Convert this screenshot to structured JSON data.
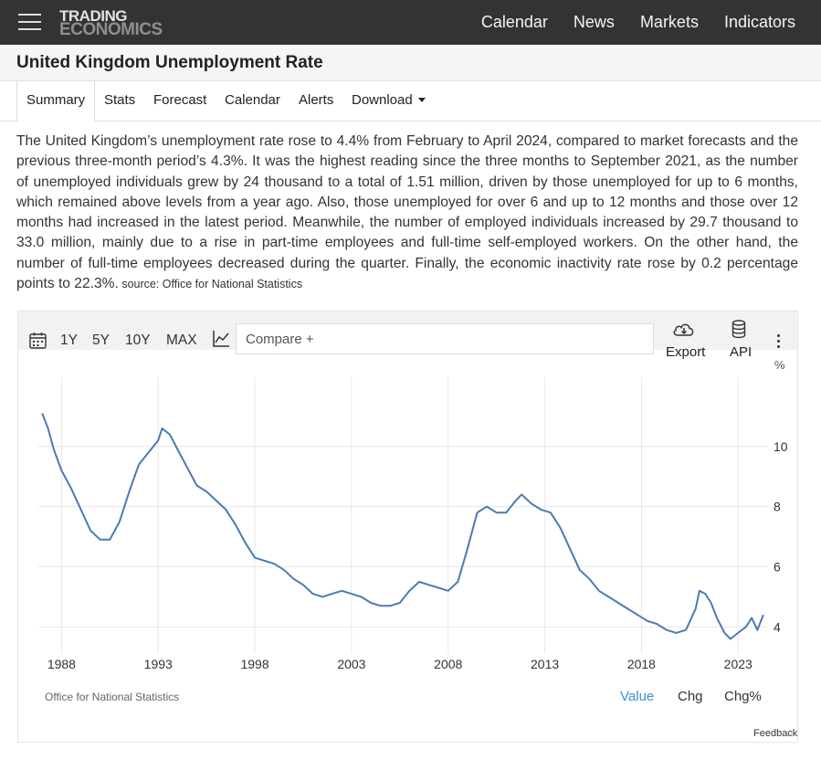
{
  "header": {
    "logo_line1": "TRADING",
    "logo_line2": "ECONOMICS",
    "nav": [
      "Calendar",
      "News",
      "Markets",
      "Indicators"
    ]
  },
  "page": {
    "title": "United Kingdom Unemployment Rate"
  },
  "tabs": [
    "Summary",
    "Stats",
    "Forecast",
    "Calendar",
    "Alerts",
    "Download"
  ],
  "summary": {
    "text": "The United Kingdom’s unemployment rate rose to 4.4% from February to April 2024, compared to market forecasts and the previous three-month period’s 4.3%. It was the highest reading since the three months to September 2021, as the number of unemployed individuals grew by 24 thousand to a total of 1.51 million, driven by those unemployed for up to 6 months, which remained above levels from a year ago. Also, those unemployed for over 6 and up to 12 months and those over 12 months had increased in the latest period. Meanwhile, the number of employed individuals increased by 29.7 thousand to 33.0 million, mainly due to a rise in part-time employees and full-time self-employed workers. On the other hand, the number of full-time employees decreased during the quarter. Finally, the economic inactivity rate rose by 0.2 percentage points to 22.3%.",
    "source": " source: Office for National Statistics"
  },
  "toolbar": {
    "ranges": [
      "1Y",
      "5Y",
      "10Y",
      "MAX"
    ],
    "compare_placeholder": "Compare +",
    "export_label": "Export",
    "api_label": "API",
    "icons": [
      "calendar-icon",
      "line-chart-icon",
      "cloud-download-icon",
      "database-icon",
      "more-vertical-icon"
    ]
  },
  "chart_data": {
    "type": "line",
    "unit": "%",
    "xlim": [
      1986.8,
      2024.5
    ],
    "ylim": [
      3.1,
      12.3
    ],
    "x_ticks": [
      1988,
      1993,
      1998,
      2003,
      2008,
      2013,
      2018,
      2023
    ],
    "y_ticks": [
      4,
      6,
      8,
      10
    ],
    "grid": true,
    "series": [
      {
        "color": "#4b7ab3",
        "points": [
          [
            1987.0,
            11.1
          ],
          [
            1987.3,
            10.6
          ],
          [
            1987.6,
            9.9
          ],
          [
            1988.0,
            9.2
          ],
          [
            1988.5,
            8.6
          ],
          [
            1989.0,
            7.9
          ],
          [
            1989.5,
            7.2
          ],
          [
            1990.0,
            6.9
          ],
          [
            1990.5,
            6.9
          ],
          [
            1991.0,
            7.5
          ],
          [
            1991.5,
            8.5
          ],
          [
            1992.0,
            9.4
          ],
          [
            1992.5,
            9.8
          ],
          [
            1993.0,
            10.2
          ],
          [
            1993.2,
            10.6
          ],
          [
            1993.6,
            10.4
          ],
          [
            1994.0,
            9.9
          ],
          [
            1994.5,
            9.3
          ],
          [
            1995.0,
            8.7
          ],
          [
            1995.5,
            8.5
          ],
          [
            1996.0,
            8.2
          ],
          [
            1996.5,
            7.9
          ],
          [
            1997.0,
            7.4
          ],
          [
            1997.5,
            6.8
          ],
          [
            1998.0,
            6.3
          ],
          [
            1998.5,
            6.2
          ],
          [
            1999.0,
            6.1
          ],
          [
            1999.5,
            5.9
          ],
          [
            2000.0,
            5.6
          ],
          [
            2000.5,
            5.4
          ],
          [
            2001.0,
            5.1
          ],
          [
            2001.5,
            5.0
          ],
          [
            2002.0,
            5.1
          ],
          [
            2002.5,
            5.2
          ],
          [
            2003.0,
            5.1
          ],
          [
            2003.5,
            5.0
          ],
          [
            2004.0,
            4.8
          ],
          [
            2004.5,
            4.7
          ],
          [
            2005.0,
            4.7
          ],
          [
            2005.5,
            4.8
          ],
          [
            2006.0,
            5.2
          ],
          [
            2006.5,
            5.5
          ],
          [
            2007.0,
            5.4
          ],
          [
            2007.5,
            5.3
          ],
          [
            2008.0,
            5.2
          ],
          [
            2008.5,
            5.5
          ],
          [
            2009.0,
            6.6
          ],
          [
            2009.5,
            7.8
          ],
          [
            2010.0,
            8.0
          ],
          [
            2010.5,
            7.8
          ],
          [
            2011.0,
            7.8
          ],
          [
            2011.5,
            8.2
          ],
          [
            2011.8,
            8.4
          ],
          [
            2012.3,
            8.1
          ],
          [
            2012.8,
            7.9
          ],
          [
            2013.3,
            7.8
          ],
          [
            2013.8,
            7.3
          ],
          [
            2014.3,
            6.6
          ],
          [
            2014.8,
            5.9
          ],
          [
            2015.3,
            5.6
          ],
          [
            2015.8,
            5.2
          ],
          [
            2016.3,
            5.0
          ],
          [
            2016.8,
            4.8
          ],
          [
            2017.3,
            4.6
          ],
          [
            2017.8,
            4.4
          ],
          [
            2018.3,
            4.2
          ],
          [
            2018.8,
            4.1
          ],
          [
            2019.3,
            3.9
          ],
          [
            2019.8,
            3.8
          ],
          [
            2020.3,
            3.9
          ],
          [
            2020.8,
            4.6
          ],
          [
            2021.0,
            5.2
          ],
          [
            2021.3,
            5.1
          ],
          [
            2021.6,
            4.8
          ],
          [
            2021.9,
            4.3
          ],
          [
            2022.3,
            3.8
          ],
          [
            2022.6,
            3.6
          ],
          [
            2023.0,
            3.8
          ],
          [
            2023.4,
            4.0
          ],
          [
            2023.7,
            4.3
          ],
          [
            2024.0,
            3.9
          ],
          [
            2024.3,
            4.4
          ]
        ]
      }
    ]
  },
  "chart_footer": {
    "source": "Office for National Statistics",
    "views": [
      "Value",
      "Chg",
      "Chg%"
    ],
    "feedback": "Feedback"
  },
  "colors": {
    "header_bg": "#333333",
    "line": "#4b7ab3",
    "active_view": "#3d8fd6"
  }
}
